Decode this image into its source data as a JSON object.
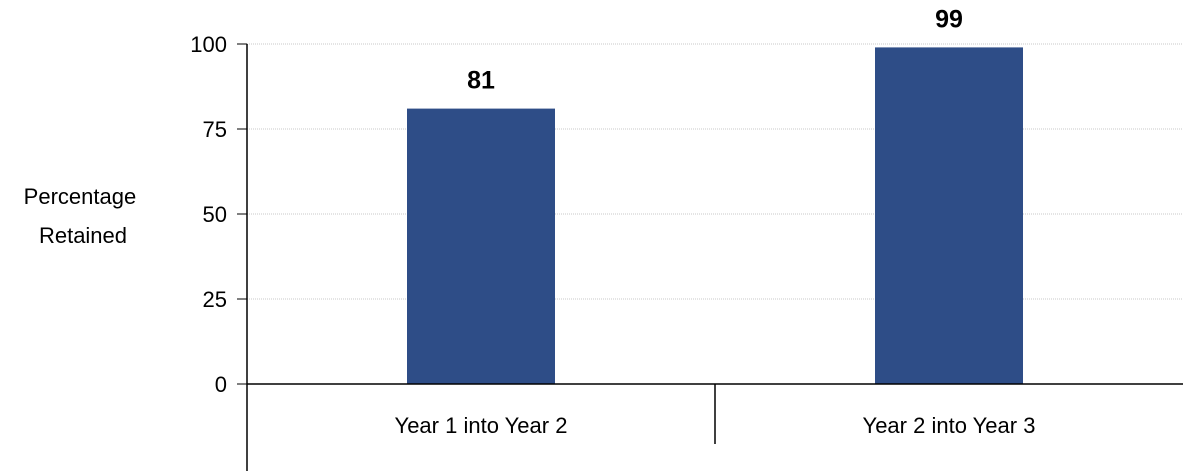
{
  "chart_data": {
    "type": "bar",
    "categories": [
      "Year 1 into Year 2",
      "Year 2 into Year 3"
    ],
    "values": [
      81,
      99
    ],
    "data_labels": [
      "81",
      "99"
    ],
    "title": "",
    "xlabel": "",
    "ylabel_lines": [
      "Percentage",
      "Retained"
    ],
    "ylim": [
      0,
      100
    ],
    "yticks": [
      0,
      25,
      50,
      75,
      100
    ],
    "grid": true,
    "bar_color": "#2e4d87"
  }
}
